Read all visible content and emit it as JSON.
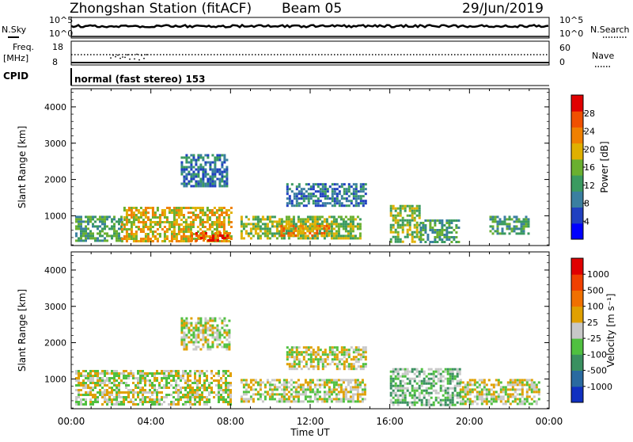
{
  "header": {
    "station": "Zhongshan Station (fitACF)",
    "beam": "Beam 05",
    "date": "29/Jun/2019"
  },
  "noise_panel": {
    "left_label": "N.Sky",
    "right_label": "N.Search",
    "left_ticks": [
      "10^5",
      "10^0"
    ],
    "right_ticks": [
      "10^5",
      "10^0"
    ]
  },
  "freq_panel": {
    "left_label_1": "Freq.",
    "left_label_2": "[MHz]",
    "right_label": "Nave",
    "left_ticks": [
      "18",
      "8"
    ],
    "right_ticks": [
      "60",
      "0"
    ]
  },
  "cpid": {
    "label": "CPID",
    "text": "normal (fast stereo) 153"
  },
  "power_panel": {
    "ylabel": "Slant Range [km]",
    "yticks": [
      "4000",
      "3000",
      "2000",
      "1000"
    ],
    "colorbar_label": "Power [dB]",
    "colorbar_ticks": [
      "28",
      "24",
      "20",
      "16",
      "12",
      "8",
      "4"
    ],
    "colors": [
      "#0000ff",
      "#2040c0",
      "#3a7fa0",
      "#3a9a60",
      "#6ab030",
      "#e0b000",
      "#f08000",
      "#f05000",
      "#e00000"
    ]
  },
  "velocity_panel": {
    "ylabel": "Slant Range [km]",
    "yticks": [
      "4000",
      "3000",
      "2000",
      "1000"
    ],
    "colorbar_label": "Velocity [m s⁻¹]",
    "colorbar_ticks": [
      "1000",
      "500",
      "100",
      "25",
      "-25",
      "-100",
      "-500",
      "-1000"
    ],
    "colors": [
      "#1030c0",
      "#2a6aa0",
      "#3a9060",
      "#50c040",
      "#c8c8c8",
      "#e0a000",
      "#f07000",
      "#f04000",
      "#e00000"
    ]
  },
  "xaxis": {
    "ticks": [
      "00:00",
      "04:00",
      "08:00",
      "12:00",
      "16:00",
      "20:00",
      "00:00"
    ],
    "label": "Time UT"
  },
  "chart_data": [
    {
      "type": "heatmap",
      "title": "Power [dB]",
      "xlabel": "Time UT",
      "ylabel": "Slant Range [km]",
      "xlim": [
        0,
        24
      ],
      "ylim": [
        180,
        4500
      ],
      "zlim": [
        0,
        30
      ],
      "regions": [
        {
          "t0": 0.2,
          "t1": 2.5,
          "r0": 300,
          "r1": 1000,
          "value": 12
        },
        {
          "t0": 2.5,
          "t1": 8.0,
          "r0": 300,
          "r1": 1250,
          "value": 18
        },
        {
          "t0": 6.0,
          "t1": 8.0,
          "r0": 300,
          "r1": 550,
          "value": 26
        },
        {
          "t0": 5.5,
          "t1": 7.8,
          "r0": 1800,
          "r1": 2700,
          "value": 8
        },
        {
          "t0": 8.5,
          "t1": 14.5,
          "r0": 400,
          "r1": 1000,
          "value": 14
        },
        {
          "t0": 10.5,
          "t1": 13.0,
          "r0": 450,
          "r1": 750,
          "value": 22
        },
        {
          "t0": 10.8,
          "t1": 14.8,
          "r0": 1300,
          "r1": 1900,
          "value": 8
        },
        {
          "t0": 16.0,
          "t1": 17.5,
          "r0": 300,
          "r1": 1300,
          "value": 14
        },
        {
          "t0": 17.5,
          "t1": 19.5,
          "r0": 300,
          "r1": 900,
          "value": 12
        },
        {
          "t0": 21.0,
          "t1": 23.0,
          "r0": 500,
          "r1": 1000,
          "value": 10
        }
      ]
    },
    {
      "type": "heatmap",
      "title": "Velocity [m s⁻¹]",
      "xlabel": "Time UT",
      "ylabel": "Slant Range [km]",
      "xlim": [
        0,
        24
      ],
      "ylim": [
        180,
        4500
      ],
      "zlim": [
        -1000,
        1000
      ],
      "regions": [
        {
          "t0": 0.2,
          "t1": 8.0,
          "r0": 300,
          "r1": 1250,
          "value": -120
        },
        {
          "t0": 5.5,
          "t1": 8.0,
          "r0": 1800,
          "r1": 2700,
          "value": 0
        },
        {
          "t0": 8.5,
          "t1": 14.8,
          "r0": 350,
          "r1": 1000,
          "value": 80
        },
        {
          "t0": 10.8,
          "t1": 14.8,
          "r0": 1300,
          "r1": 1900,
          "value": 0
        },
        {
          "t0": 16.0,
          "t1": 19.5,
          "r0": 300,
          "r1": 1300,
          "value": -150
        },
        {
          "t0": 19.5,
          "t1": 23.5,
          "r0": 300,
          "r1": 1000,
          "value": 40
        }
      ]
    }
  ]
}
